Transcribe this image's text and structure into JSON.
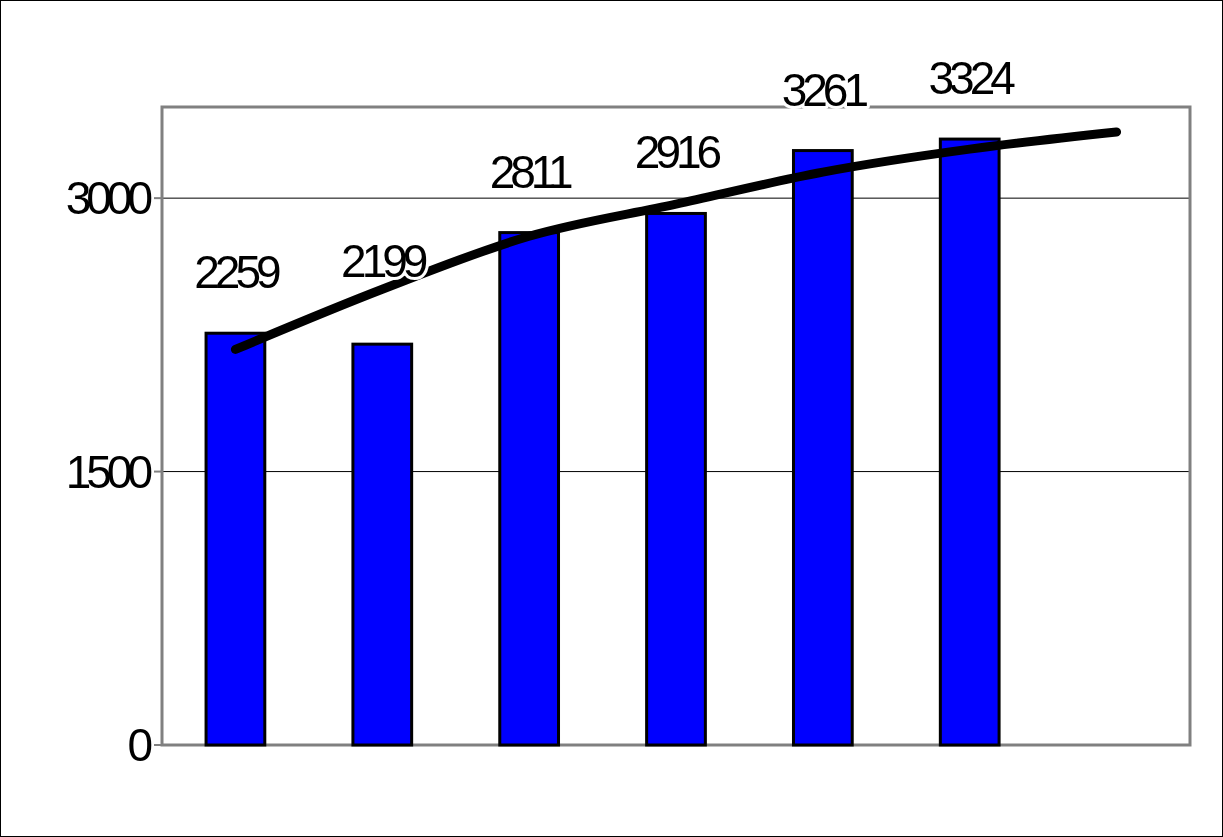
{
  "chart_data": {
    "type": "bar",
    "categories": [
      null,
      null,
      null,
      null,
      null,
      null,
      null
    ],
    "series": [
      {
        "color": "#0000ff",
        "values": [
          2259,
          2199,
          2811,
          2916,
          3261,
          3324,
          null
        ],
        "value_labels": [
          "2259",
          "2199",
          "2811",
          "2916",
          "3261",
          "3324",
          null
        ]
      },
      {
        "type": "line",
        "color": "#000000",
        "values": [
          2170,
          2500,
          2791,
          2967,
          3143,
          3269,
          3363
        ]
      }
    ],
    "ylim": [
      0,
      3500
    ],
    "yticks": [
      0,
      1500,
      3000
    ],
    "grid": "y",
    "marker": "none",
    "line_style": "solid"
  }
}
